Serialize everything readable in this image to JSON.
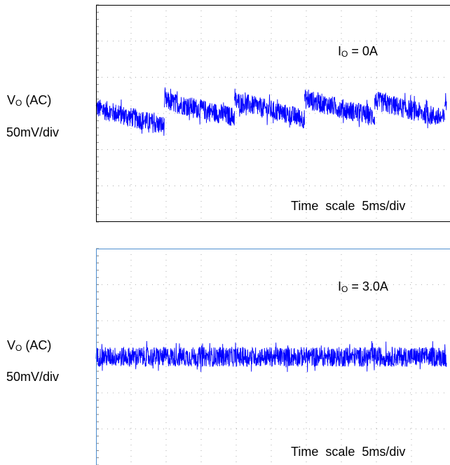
{
  "chart_data": [
    {
      "type": "line",
      "ylabel": {
        "main": "V",
        "sub": "O",
        "rest": " (AC)",
        "scale": "50mV/div"
      },
      "annotation": {
        "main": "I",
        "sub": "O",
        "rest": " = 0A"
      },
      "time_scale": "Time  scale  5ms/div",
      "grid": true,
      "x_unit": "div",
      "y_unit": "div",
      "x_range": [
        0,
        10
      ],
      "y_range": [
        -3,
        3
      ],
      "frame_color": "#000000",
      "trace_color": "#0000ff",
      "series": [
        {
          "segments": [
            {
              "x": [
                0.0,
                1.95
              ],
              "y_start": 0.15,
              "y_end": -0.35
            },
            {
              "x": [
                1.95,
                3.95
              ],
              "y_start": 0.35,
              "y_end": -0.1
            },
            {
              "x": [
                3.95,
                5.95
              ],
              "y_start": 0.35,
              "y_end": -0.15
            },
            {
              "x": [
                5.95,
                7.95
              ],
              "y_start": 0.4,
              "y_end": -0.1
            },
            {
              "x": [
                7.95,
                9.95
              ],
              "y_start": 0.35,
              "y_end": -0.15
            },
            {
              "x": [
                9.95,
                10.0
              ],
              "y_start": 0.35,
              "y_end": 0.3
            }
          ],
          "noise_pp": 0.55
        }
      ]
    },
    {
      "type": "line",
      "ylabel": {
        "main": "V",
        "sub": "O",
        "rest": " (AC)",
        "scale": "50mV/div"
      },
      "annotation": {
        "main": "I",
        "sub": "O",
        "rest": " = 3.0A"
      },
      "time_scale": "Time  scale  5ms/div",
      "grid": true,
      "x_unit": "div",
      "y_unit": "div",
      "x_range": [
        0,
        10
      ],
      "y_range": [
        -3,
        3
      ],
      "frame_color": "#4f8fd0",
      "trace_color": "#0000ff",
      "series": [
        {
          "segments": [
            {
              "x": [
                0.0,
                10.0
              ],
              "y_start": 0.0,
              "y_end": 0.0
            }
          ],
          "noise_pp": 0.55
        }
      ]
    }
  ]
}
